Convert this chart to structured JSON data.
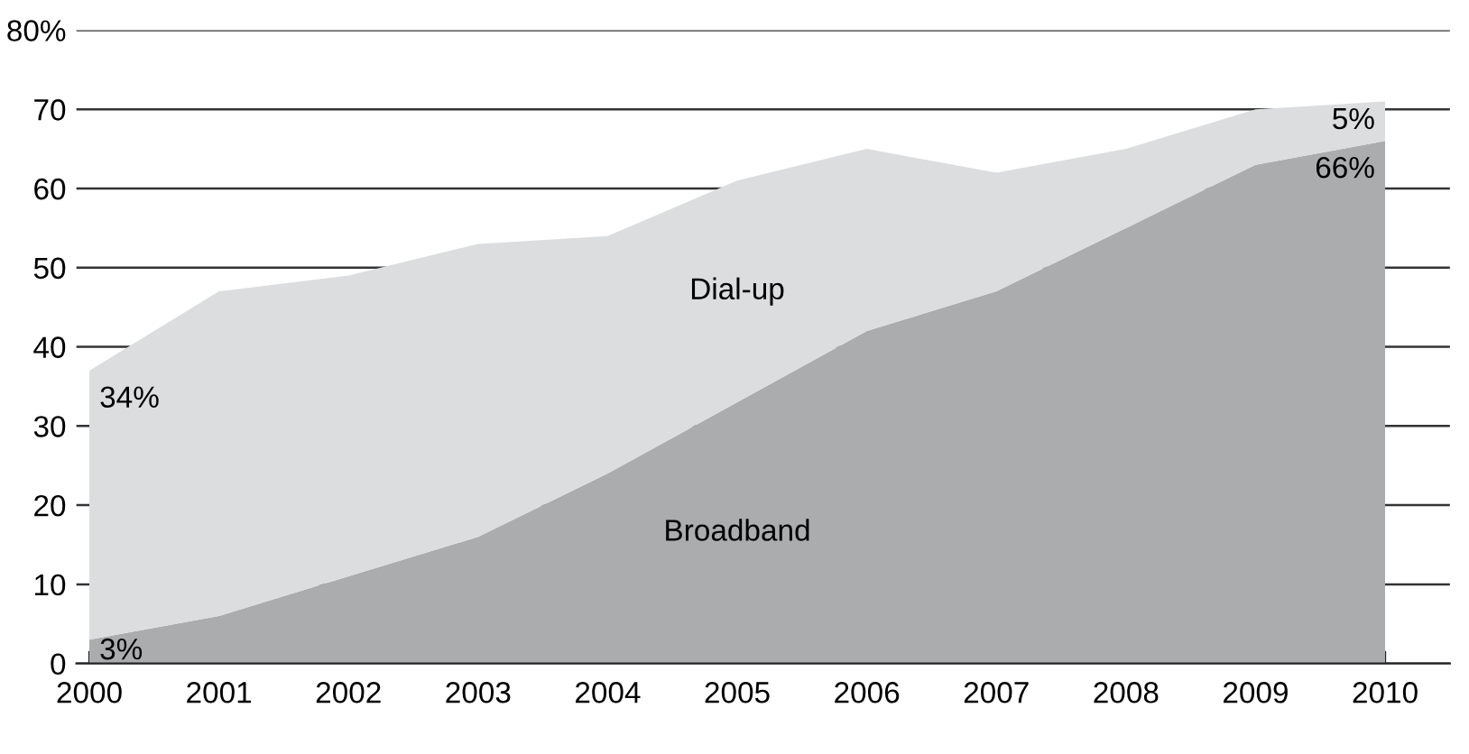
{
  "chart_data": {
    "type": "area",
    "stacked": true,
    "x": [
      2000,
      2001,
      2002,
      2003,
      2004,
      2005,
      2006,
      2007,
      2008,
      2009,
      2010
    ],
    "series": [
      {
        "name": "Broadband",
        "color": "#abacae",
        "values": [
          3,
          6,
          11,
          16,
          24,
          33,
          42,
          47,
          55,
          63,
          66
        ],
        "value_labels": [
          "3%",
          null,
          null,
          null,
          null,
          null,
          null,
          null,
          null,
          null,
          "66%"
        ]
      },
      {
        "name": "Dial-up",
        "color": "#dcdddf",
        "values": [
          34,
          41,
          38,
          37,
          30,
          28,
          23,
          15,
          10,
          7,
          5
        ],
        "value_labels": [
          "34%",
          null,
          null,
          null,
          null,
          null,
          null,
          null,
          null,
          null,
          "5%"
        ]
      }
    ],
    "xlim": [
      1999.9,
      2010.5
    ],
    "xticks": [
      2000,
      2001,
      2002,
      2003,
      2004,
      2005,
      2006,
      2007,
      2008,
      2009,
      2010
    ],
    "ylim": [
      0,
      80
    ],
    "yticks": [
      0,
      10,
      20,
      30,
      40,
      50,
      60,
      70,
      {
        "value": 80,
        "label": "80%"
      }
    ],
    "grid": "y",
    "legend": false
  }
}
